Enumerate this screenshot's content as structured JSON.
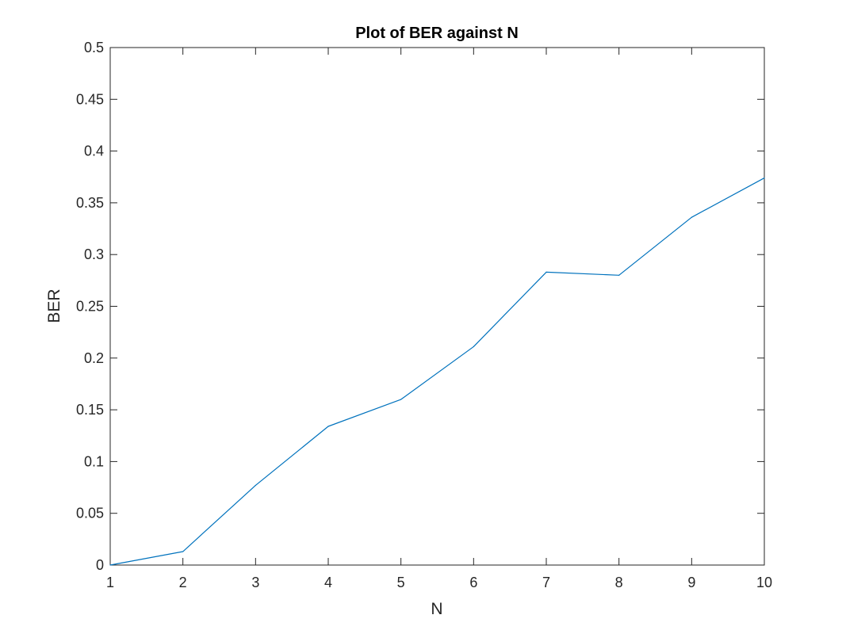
{
  "chart_data": {
    "type": "line",
    "title": "Plot of BER against N",
    "xlabel": "N",
    "ylabel": "BER",
    "xlim": [
      1,
      10
    ],
    "ylim": [
      0,
      0.5
    ],
    "x_ticks": [
      "1",
      "2",
      "3",
      "4",
      "5",
      "6",
      "7",
      "8",
      "9",
      "10"
    ],
    "y_ticks": [
      "0",
      "0.05",
      "0.1",
      "0.15",
      "0.2",
      "0.25",
      "0.3",
      "0.35",
      "0.4",
      "0.45",
      "0.5"
    ],
    "grid": false,
    "legend": "none",
    "series": [
      {
        "color": "#0072BD",
        "x": [
          1,
          2,
          3,
          4,
          5,
          6,
          7,
          8,
          9,
          10
        ],
        "y": [
          0.0,
          0.013,
          0.077,
          0.134,
          0.16,
          0.211,
          0.283,
          0.28,
          0.336,
          0.374
        ]
      }
    ],
    "colors": {
      "axis": "#262626",
      "background": "#ffffff"
    }
  }
}
